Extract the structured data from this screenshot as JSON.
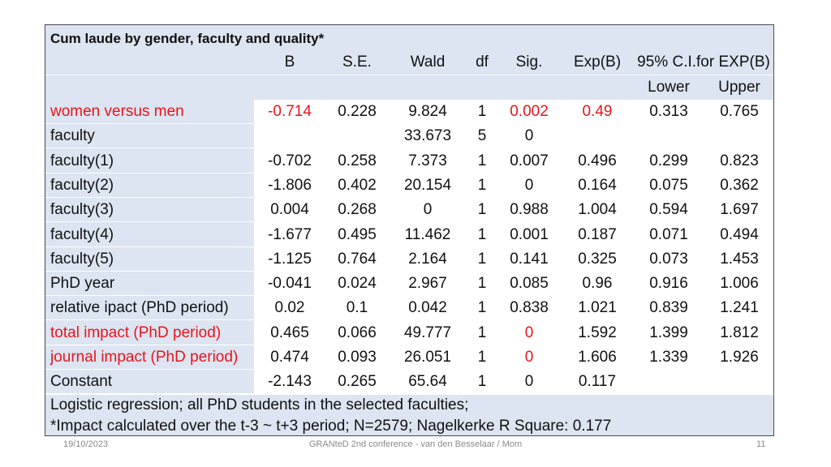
{
  "title": "Cum laude by gender, faculty and quality*",
  "header": {
    "columns": [
      "B",
      "S.E.",
      "Wald",
      "df",
      "Sig.",
      "Exp(B)",
      "95% C.I.for EXP(B)"
    ],
    "sub_columns": [
      "Lower",
      "Upper"
    ]
  },
  "rows": [
    {
      "label": "women versus men",
      "B": "-0.714",
      "SE": "0.228",
      "Wald": "9.824",
      "df": "1",
      "Sig": "0.002",
      "ExpB": "0.49",
      "Lower": "0.313",
      "Upper": "0.765"
    },
    {
      "label": "faculty",
      "B": "",
      "SE": "",
      "Wald": "33.673",
      "df": "5",
      "Sig": "0",
      "ExpB": "",
      "Lower": "",
      "Upper": ""
    },
    {
      "label": "faculty(1)",
      "B": "-0.702",
      "SE": "0.258",
      "Wald": "7.373",
      "df": "1",
      "Sig": "0.007",
      "ExpB": "0.496",
      "Lower": "0.299",
      "Upper": "0.823"
    },
    {
      "label": "faculty(2)",
      "B": "-1.806",
      "SE": "0.402",
      "Wald": "20.154",
      "df": "1",
      "Sig": "0",
      "ExpB": "0.164",
      "Lower": "0.075",
      "Upper": "0.362"
    },
    {
      "label": "faculty(3)",
      "B": "0.004",
      "SE": "0.268",
      "Wald": "0",
      "df": "1",
      "Sig": "0.988",
      "ExpB": "1.004",
      "Lower": "0.594",
      "Upper": "1.697"
    },
    {
      "label": "faculty(4)",
      "B": "-1.677",
      "SE": "0.495",
      "Wald": "11.462",
      "df": "1",
      "Sig": "0.001",
      "ExpB": "0.187",
      "Lower": "0.071",
      "Upper": "0.494"
    },
    {
      "label": "faculty(5)",
      "B": "-1.125",
      "SE": "0.764",
      "Wald": "2.164",
      "df": "1",
      "Sig": "0.141",
      "ExpB": "0.325",
      "Lower": "0.073",
      "Upper": "1.453"
    },
    {
      "label": "PhD year",
      "B": "-0.041",
      "SE": "0.024",
      "Wald": "2.967",
      "df": "1",
      "Sig": "0.085",
      "ExpB": "0.96",
      "Lower": "0.916",
      "Upper": "1.006"
    },
    {
      "label": "relative ipact (PhD period)",
      "B": "0.02",
      "SE": "0.1",
      "Wald": "0.042",
      "df": "1",
      "Sig": "0.838",
      "ExpB": "1.021",
      "Lower": "0.839",
      "Upper": "1.241"
    },
    {
      "label": "total impact (PhD period)",
      "B": "0.465",
      "SE": "0.066",
      "Wald": "49.777",
      "df": "1",
      "Sig": "0",
      "ExpB": "1.592",
      "Lower": "1.399",
      "Upper": "1.812"
    },
    {
      "label": "journal impact (PhD period)",
      "B": "0.474",
      "SE": "0.093",
      "Wald": "26.051",
      "df": "1",
      "Sig": "0",
      "ExpB": "1.606",
      "Lower": "1.339",
      "Upper": "1.926"
    },
    {
      "label": "Constant",
      "B": "-2.143",
      "SE": "0.265",
      "Wald": "65.64",
      "df": "1",
      "Sig": "0",
      "ExpB": "0.117",
      "Lower": "",
      "Upper": ""
    }
  ],
  "footnotes": [
    "Logistic regression; all PhD students in the selected faculties;",
    "*Impact calculated over the t-3 ~ t+3 period; N=2579; Nagelkerke R Square: 0.177"
  ],
  "footer": {
    "date": "19/10/2023",
    "center": "GRANteD 2nd conference - van den Besselaar / Mom",
    "page": "11"
  },
  "colors": {
    "band": "#dce5f1",
    "highlight": "#e8141c",
    "text": "#111111",
    "footer_text": "#8a8a8a"
  }
}
